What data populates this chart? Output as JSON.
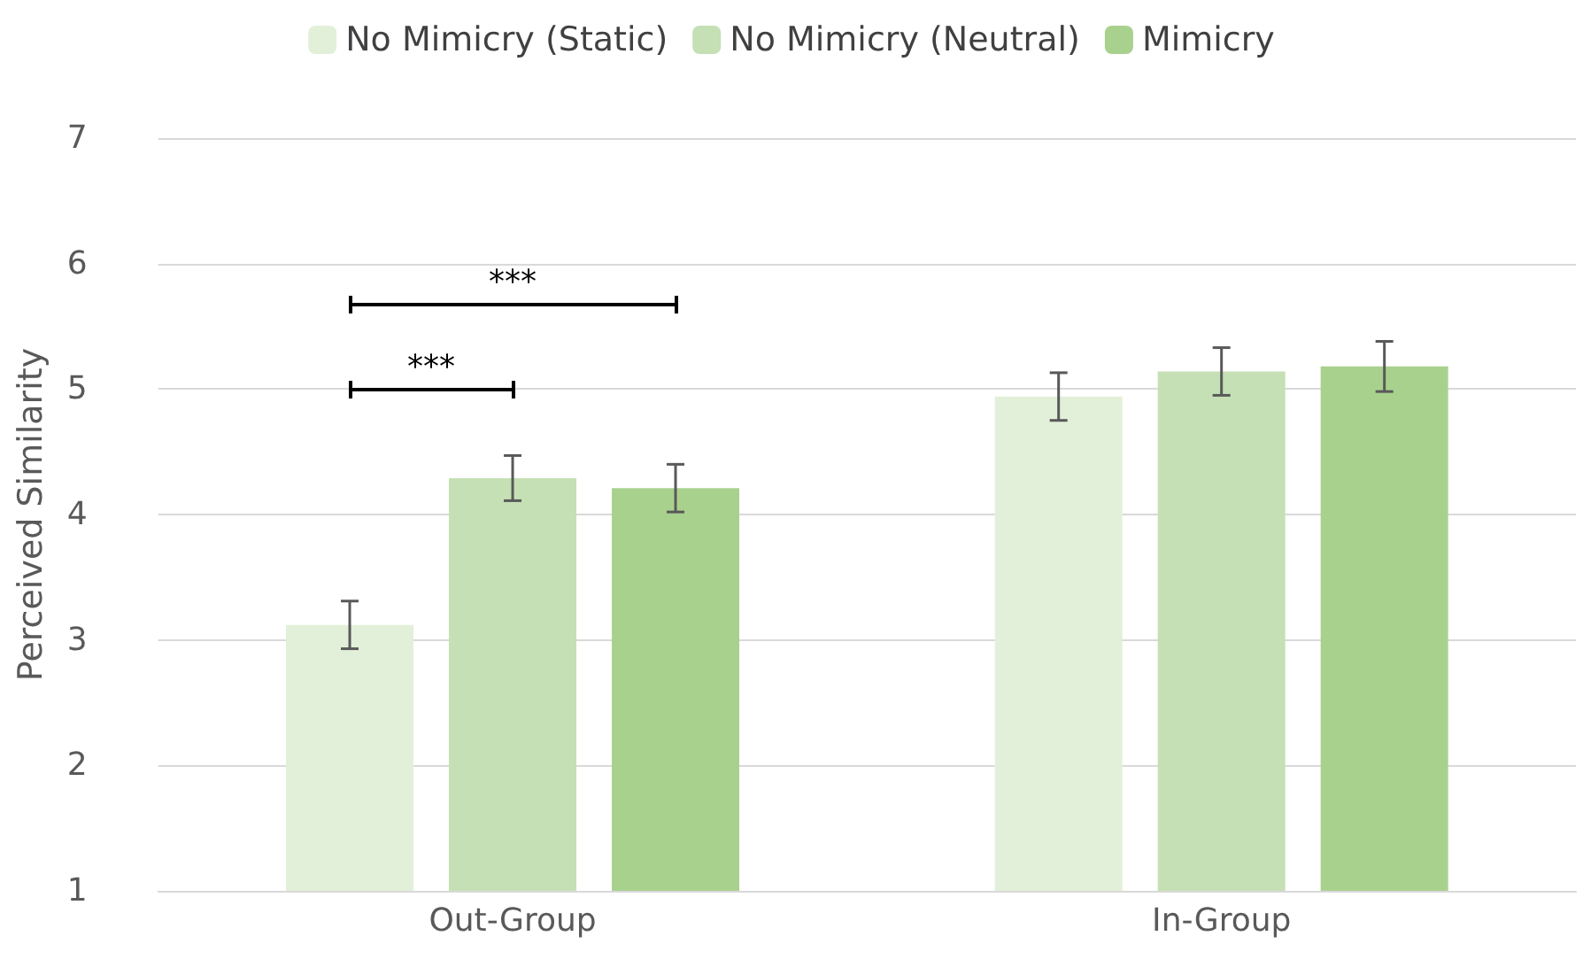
{
  "chart_data": {
    "type": "bar",
    "ylabel": "Perceived Similarity",
    "categories": [
      "Out-Group",
      "In-Group"
    ],
    "series": [
      {
        "name": "No Mimicry (Static)",
        "color": "#e2f0d9",
        "values": [
          3.12,
          4.94
        ],
        "errors": [
          0.19,
          0.19
        ]
      },
      {
        "name": "No Mimicry (Neutral)",
        "color": "#c5e0b4",
        "values": [
          4.29,
          5.14
        ],
        "errors": [
          0.18,
          0.19
        ]
      },
      {
        "name": "Mimicry",
        "color": "#a9d18e",
        "values": [
          4.21,
          5.18
        ],
        "errors": [
          0.19,
          0.2
        ]
      }
    ],
    "ylim": [
      1,
      7
    ],
    "yticks": [
      1,
      2,
      3,
      4,
      5,
      6,
      7
    ],
    "grid": "y",
    "legend": "top",
    "annotations": [
      "***",
      "***"
    ]
  }
}
